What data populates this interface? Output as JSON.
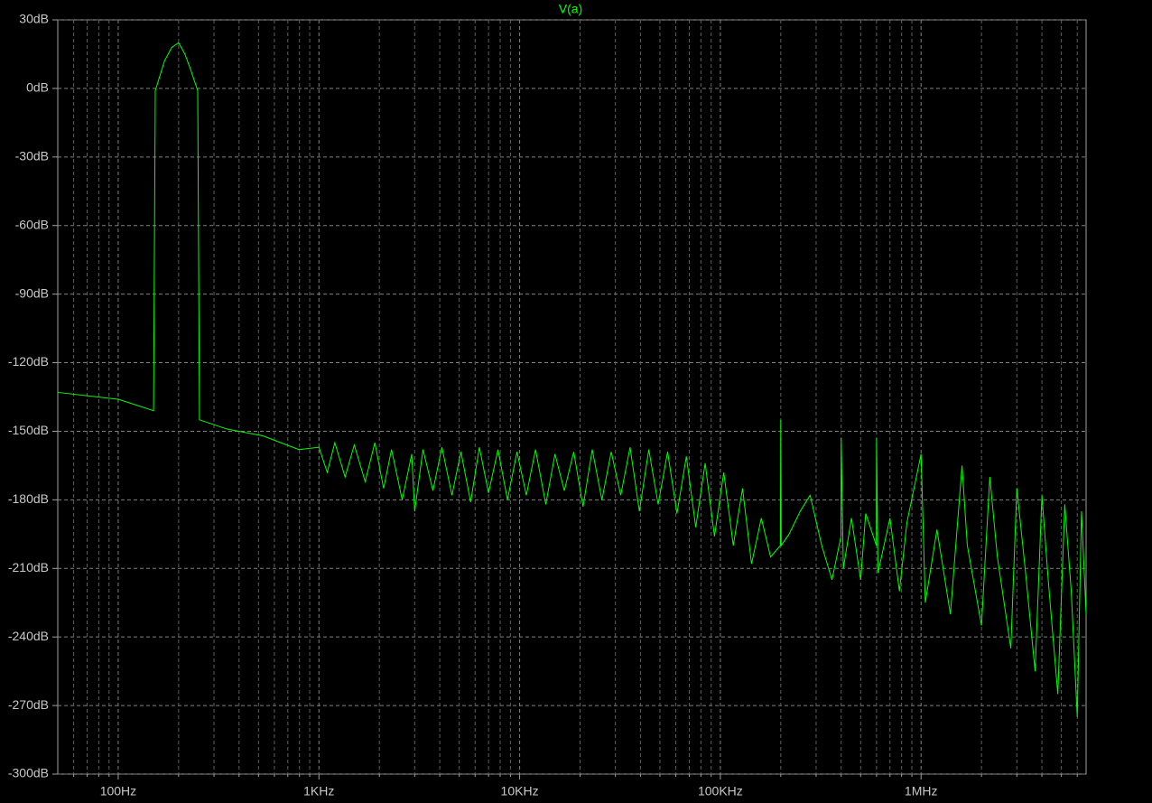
{
  "chart_data": {
    "type": "line",
    "x_log": true,
    "grid": true,
    "minor_grid": true,
    "xlim": [
      50,
      6640000
    ],
    "ylim": [
      -300,
      30
    ],
    "xticks": [
      {
        "value": 100,
        "label": "100Hz"
      },
      {
        "value": 1000,
        "label": "1KHz"
      },
      {
        "value": 10000,
        "label": "10KHz"
      },
      {
        "value": 100000,
        "label": "100KHz"
      },
      {
        "value": 1000000,
        "label": "1MHz"
      }
    ],
    "yticks": [
      {
        "value": 30,
        "label": "30dB"
      },
      {
        "value": 0,
        "label": "0dB"
      },
      {
        "value": -30,
        "label": "-30dB"
      },
      {
        "value": -60,
        "label": "-60dB"
      },
      {
        "value": -90,
        "label": "-90dB"
      },
      {
        "value": -120,
        "label": "-120dB"
      },
      {
        "value": -150,
        "label": "-150dB"
      },
      {
        "value": -180,
        "label": "-180dB"
      },
      {
        "value": -210,
        "label": "-210dB"
      },
      {
        "value": -240,
        "label": "-240dB"
      },
      {
        "value": -270,
        "label": "-270dB"
      },
      {
        "value": -300,
        "label": "-300dB"
      }
    ],
    "x": [
      50,
      100,
      150,
      153,
      170,
      185,
      200,
      215,
      230,
      249,
      254,
      347,
      525,
      794,
      1000,
      1100,
      1200,
      1350,
      1500,
      1700,
      1900,
      2100,
      2300,
      2600,
      2900,
      3000,
      3300,
      3700,
      4100,
      4600,
      5100,
      5700,
      6300,
      7000,
      7800,
      8700,
      9700,
      10800,
      12000,
      13500,
      15000,
      16700,
      18600,
      20700,
      23000,
      25700,
      28600,
      31900,
      35500,
      39500,
      44000,
      49000,
      54600,
      60800,
      67700,
      75400,
      84000,
      93500,
      104000,
      116000,
      129000,
      143000,
      160000,
      178000,
      199000,
      200000,
      201000,
      220000,
      250000,
      280000,
      320000,
      360000,
      399000,
      400000,
      410000,
      450000,
      500000,
      530000,
      599000,
      600000,
      610000,
      700000,
      780000,
      850000,
      1000000,
      1050000,
      1200000,
      1400000,
      1600000,
      1700000,
      2000000,
      2200000,
      2400000,
      2800000,
      3000000,
      3300000,
      3700000,
      4000000,
      4300000,
      4800000,
      5200000,
      5600000,
      6000000,
      6300000,
      6640000
    ],
    "series": [
      {
        "name": "V(a)",
        "color": "#00ff00",
        "values": [
          -133,
          -136,
          -141,
          -1,
          12,
          18,
          20,
          15,
          8,
          -1,
          -145,
          -149,
          -152,
          -158,
          -157,
          -168,
          -155,
          -170,
          -156,
          -172,
          -155,
          -175,
          -158,
          -180,
          -160,
          -185,
          -158,
          -176,
          -157,
          -178,
          -159,
          -181,
          -157,
          -177,
          -158,
          -180,
          -159,
          -178,
          -158,
          -182,
          -160,
          -176,
          -159,
          -183,
          -158,
          -180,
          -159,
          -178,
          -157,
          -185,
          -158,
          -182,
          -159,
          -186,
          -161,
          -192,
          -164,
          -196,
          -168,
          -200,
          -175,
          -208,
          -188,
          -205,
          -200,
          -145,
          -200,
          -195,
          -185,
          -178,
          -200,
          -215,
          -196,
          -153,
          -210,
          -188,
          -215,
          -186,
          -200,
          -153,
          -212,
          -188,
          -220,
          -190,
          -160,
          -225,
          -193,
          -230,
          -165,
          -200,
          -235,
          -170,
          -205,
          -245,
          -175,
          -210,
          -255,
          -178,
          -215,
          -265,
          -182,
          -220,
          -275,
          -185,
          -230
        ]
      }
    ]
  }
}
